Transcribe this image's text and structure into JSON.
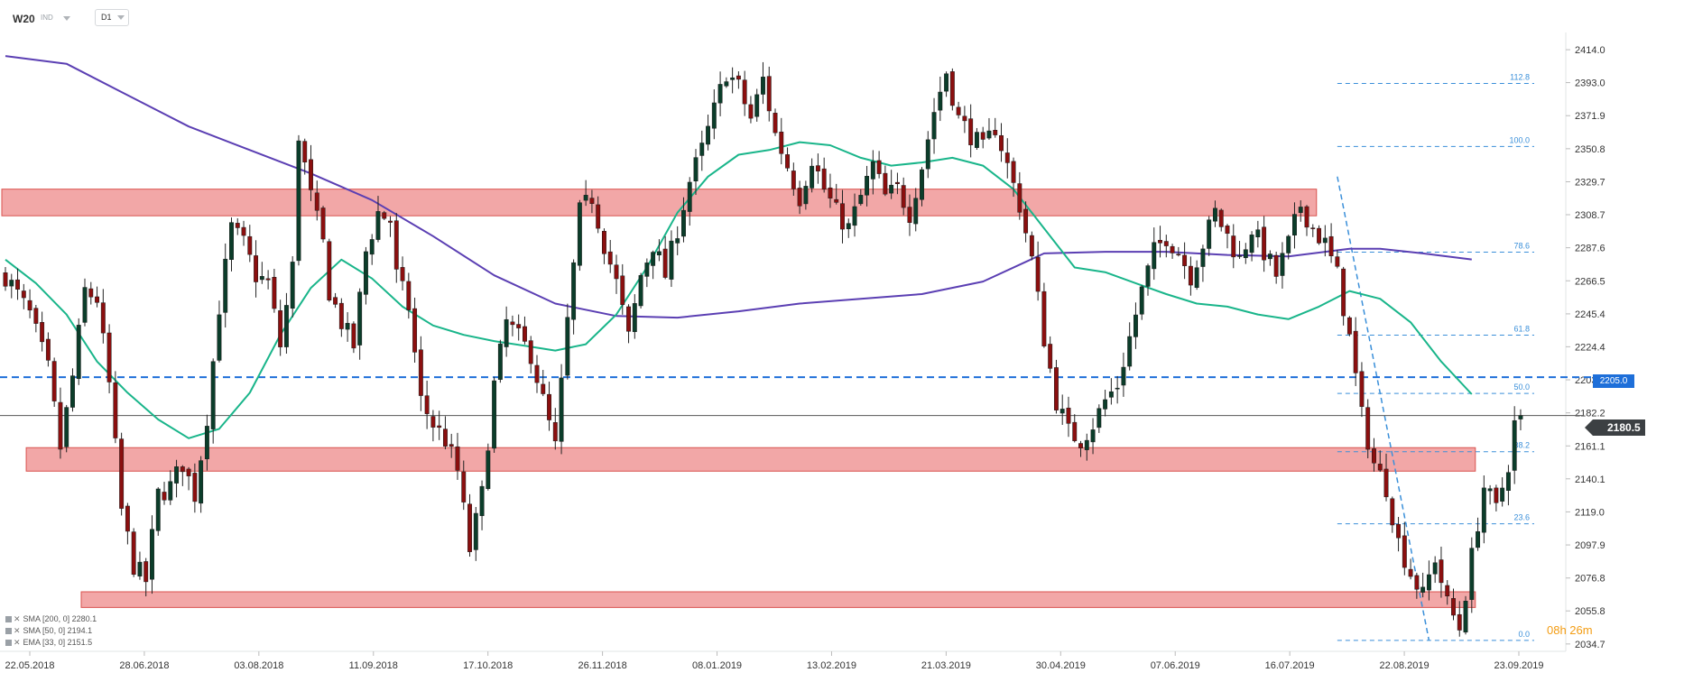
{
  "header": {
    "symbol": "W20",
    "instrument_class": "IND",
    "timeframe": "D1"
  },
  "legend": [
    {
      "label": "SMA [200, 0]",
      "value": "2280.1"
    },
    {
      "label": "SMA [50, 0]",
      "value": "2194.1"
    },
    {
      "label": "EMA [33, 0]",
      "value": "2151.5"
    }
  ],
  "last_price": "2180.5",
  "level_tag": "2205.0",
  "countdown": "08h 26m",
  "colors": {
    "bull": "#0b3d2a",
    "bear": "#8b0f0f",
    "zone_fill": "#f1a2a2",
    "zone_stroke": "#d9534f",
    "sma200": "#5b3fb3",
    "sma50": "#19b58a",
    "fib": "#3a8fd9",
    "level": "#1e6fd9",
    "price_line": "#555555"
  },
  "chart_data": {
    "type": "candlestick",
    "ylim": [
      2030.0,
      2425.0
    ],
    "y_ticks": [
      "2414.0",
      "2393.0",
      "2371.9",
      "2350.8",
      "2329.7",
      "2308.7",
      "2287.6",
      "2266.5",
      "2245.4",
      "2224.4",
      "2203.3",
      "2182.2",
      "2161.1",
      "2140.1",
      "2119.0",
      "2097.9",
      "2076.8",
      "2055.8",
      "2034.7"
    ],
    "x_labels": [
      "22.05.2018",
      "28.06.2018",
      "03.08.2018",
      "11.09.2018",
      "17.10.2018",
      "26.11.2018",
      "08.01.2019",
      "13.02.2019",
      "21.03.2019",
      "30.04.2019",
      "07.06.2019",
      "16.07.2019",
      "22.08.2019",
      "23.09.2019"
    ],
    "price_path": [
      [
        0,
        2270
      ],
      [
        4,
        2245
      ],
      [
        7,
        2210
      ],
      [
        9,
        2160
      ],
      [
        11,
        2205
      ],
      [
        13,
        2260
      ],
      [
        15,
        2255
      ],
      [
        17,
        2200
      ],
      [
        19,
        2120
      ],
      [
        21,
        2085
      ],
      [
        23,
        2075
      ],
      [
        25,
        2130
      ],
      [
        27,
        2135
      ],
      [
        29,
        2150
      ],
      [
        31,
        2130
      ],
      [
        33,
        2180
      ],
      [
        35,
        2250
      ],
      [
        37,
        2300
      ],
      [
        39,
        2290
      ],
      [
        41,
        2270
      ],
      [
        43,
        2265
      ],
      [
        45,
        2225
      ],
      [
        47,
        2275
      ],
      [
        48,
        2360
      ],
      [
        50,
        2320
      ],
      [
        52,
        2290
      ],
      [
        53,
        2260
      ],
      [
        55,
        2240
      ],
      [
        57,
        2225
      ],
      [
        59,
        2285
      ],
      [
        61,
        2310
      ],
      [
        63,
        2305
      ],
      [
        64,
        2270
      ],
      [
        66,
        2250
      ],
      [
        68,
        2190
      ],
      [
        70,
        2175
      ],
      [
        72,
        2165
      ],
      [
        74,
        2145
      ],
      [
        76,
        2095
      ],
      [
        78,
        2130
      ],
      [
        80,
        2200
      ],
      [
        82,
        2240
      ],
      [
        84,
        2230
      ],
      [
        86,
        2220
      ],
      [
        88,
        2190
      ],
      [
        90,
        2160
      ],
      [
        92,
        2240
      ],
      [
        94,
        2310
      ],
      [
        96,
        2320
      ],
      [
        98,
        2290
      ],
      [
        100,
        2265
      ],
      [
        102,
        2230
      ],
      [
        104,
        2270
      ],
      [
        106,
        2290
      ],
      [
        108,
        2270
      ],
      [
        110,
        2300
      ],
      [
        112,
        2330
      ],
      [
        114,
        2350
      ],
      [
        116,
        2375
      ],
      [
        118,
        2400
      ],
      [
        120,
        2390
      ],
      [
        122,
        2370
      ],
      [
        124,
        2395
      ],
      [
        126,
        2360
      ],
      [
        128,
        2340
      ],
      [
        130,
        2320
      ],
      [
        132,
        2345
      ],
      [
        134,
        2325
      ],
      [
        136,
        2310
      ],
      [
        138,
        2300
      ],
      [
        140,
        2320
      ],
      [
        142,
        2340
      ],
      [
        144,
        2320
      ],
      [
        146,
        2325
      ],
      [
        148,
        2310
      ],
      [
        150,
        2340
      ],
      [
        152,
        2375
      ],
      [
        154,
        2400
      ],
      [
        156,
        2370
      ],
      [
        158,
        2360
      ],
      [
        160,
        2350
      ],
      [
        162,
        2365
      ],
      [
        164,
        2340
      ],
      [
        166,
        2315
      ],
      [
        168,
        2280
      ],
      [
        170,
        2230
      ],
      [
        172,
        2190
      ],
      [
        174,
        2170
      ],
      [
        176,
        2165
      ],
      [
        178,
        2175
      ],
      [
        180,
        2190
      ],
      [
        182,
        2200
      ],
      [
        184,
        2230
      ],
      [
        186,
        2260
      ],
      [
        188,
        2285
      ],
      [
        190,
        2295
      ],
      [
        192,
        2285
      ],
      [
        194,
        2270
      ],
      [
        196,
        2290
      ],
      [
        198,
        2310
      ],
      [
        200,
        2295
      ],
      [
        202,
        2280
      ],
      [
        204,
        2300
      ],
      [
        206,
        2285
      ],
      [
        208,
        2270
      ],
      [
        210,
        2290
      ],
      [
        212,
        2315
      ],
      [
        214,
        2300
      ],
      [
        216,
        2290
      ],
      [
        218,
        2270
      ],
      [
        220,
        2230
      ],
      [
        222,
        2180
      ],
      [
        224,
        2150
      ],
      [
        226,
        2135
      ],
      [
        228,
        2100
      ],
      [
        230,
        2080
      ],
      [
        232,
        2065
      ],
      [
        234,
        2090
      ],
      [
        236,
        2060
      ],
      [
        238,
        2045
      ],
      [
        240,
        2090
      ],
      [
        242,
        2135
      ],
      [
        244,
        2120
      ],
      [
        246,
        2150
      ],
      [
        247,
        2175
      ],
      [
        248,
        2180.5
      ]
    ],
    "series": [
      {
        "name": "SMA [200, 0]",
        "points": [
          [
            0,
            2410
          ],
          [
            10,
            2405
          ],
          [
            20,
            2385
          ],
          [
            30,
            2365
          ],
          [
            40,
            2350
          ],
          [
            50,
            2335
          ],
          [
            60,
            2318
          ],
          [
            70,
            2295
          ],
          [
            80,
            2270
          ],
          [
            90,
            2252
          ],
          [
            100,
            2244
          ],
          [
            110,
            2243
          ],
          [
            120,
            2247
          ],
          [
            130,
            2252
          ],
          [
            140,
            2255
          ],
          [
            150,
            2258
          ],
          [
            160,
            2266
          ],
          [
            170,
            2284
          ],
          [
            180,
            2285
          ],
          [
            190,
            2285
          ],
          [
            200,
            2283
          ],
          [
            210,
            2282
          ],
          [
            220,
            2287
          ],
          [
            225,
            2287
          ],
          [
            232,
            2284
          ],
          [
            240,
            2280.1
          ]
        ]
      },
      {
        "name": "SMA [50, 0]",
        "points": [
          [
            0,
            2280
          ],
          [
            5,
            2265
          ],
          [
            10,
            2245
          ],
          [
            15,
            2215
          ],
          [
            20,
            2195
          ],
          [
            25,
            2178
          ],
          [
            30,
            2166
          ],
          [
            35,
            2172
          ],
          [
            40,
            2195
          ],
          [
            45,
            2232
          ],
          [
            50,
            2262
          ],
          [
            55,
            2280
          ],
          [
            60,
            2268
          ],
          [
            65,
            2250
          ],
          [
            70,
            2238
          ],
          [
            75,
            2232
          ],
          [
            80,
            2228
          ],
          [
            85,
            2225
          ],
          [
            90,
            2222
          ],
          [
            95,
            2226
          ],
          [
            100,
            2245
          ],
          [
            105,
            2275
          ],
          [
            110,
            2310
          ],
          [
            115,
            2333
          ],
          [
            120,
            2347
          ],
          [
            125,
            2350
          ],
          [
            130,
            2355
          ],
          [
            135,
            2353
          ],
          [
            140,
            2345
          ],
          [
            145,
            2340
          ],
          [
            150,
            2342
          ],
          [
            155,
            2345
          ],
          [
            160,
            2340
          ],
          [
            165,
            2325
          ],
          [
            170,
            2300
          ],
          [
            175,
            2275
          ],
          [
            180,
            2272
          ],
          [
            185,
            2265
          ],
          [
            190,
            2258
          ],
          [
            195,
            2252
          ],
          [
            200,
            2250
          ],
          [
            205,
            2245
          ],
          [
            210,
            2242
          ],
          [
            215,
            2250
          ],
          [
            220,
            2260
          ],
          [
            225,
            2255
          ],
          [
            230,
            2240
          ],
          [
            235,
            2215
          ],
          [
            240,
            2194.1
          ]
        ]
      }
    ],
    "fibonacci": [
      {
        "label": "0.0",
        "value": 2037.0
      },
      {
        "label": "23.6",
        "value": 2111.4
      },
      {
        "label": "38.2",
        "value": 2157.4
      },
      {
        "label": "50.0",
        "value": 2194.6
      },
      {
        "label": "61.8",
        "value": 2231.8
      },
      {
        "label": "78.6",
        "value": 2284.8
      },
      {
        "label": "100.0",
        "value": 2352.2
      },
      {
        "label": "112.8",
        "value": 2392.5
      }
    ],
    "zones": [
      {
        "low": 2308.0,
        "high": 2325.0,
        "x_start": 0,
        "x_end": 214
      },
      {
        "low": 2145.0,
        "high": 2160.0,
        "x_start": 4,
        "x_end": 240
      },
      {
        "low": 2058.0,
        "high": 2068.0,
        "x_start": 13,
        "x_end": 240
      }
    ],
    "level_line": 2205.0,
    "trendline": [
      [
        218,
        2333
      ],
      [
        233,
        2037
      ]
    ]
  }
}
